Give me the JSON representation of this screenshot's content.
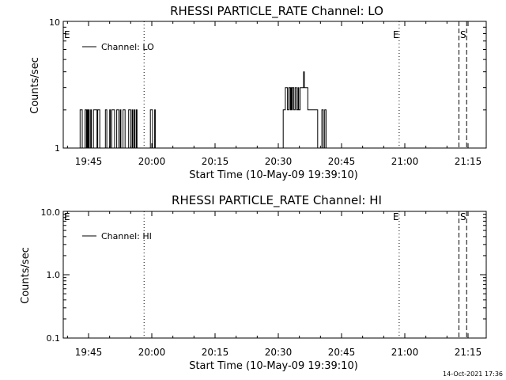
{
  "charts": [
    {
      "title": "RHESSI PARTICLE_RATE Channel: LO",
      "ylabel": "Counts/sec",
      "xlabel": "Start Time (10-May-09 19:39:10)",
      "legend": "Channel: LO",
      "yticks": [
        "1",
        "10"
      ],
      "xticks": [
        "19:45",
        "20:00",
        "20:15",
        "20:30",
        "20:45",
        "21:00",
        "21:15"
      ],
      "markers": [
        {
          "label": "E",
          "pos": "left-edge"
        },
        {
          "label": "E",
          "pos": "dotted"
        },
        {
          "label": "S",
          "pos": "dashed"
        }
      ]
    },
    {
      "title": "RHESSI PARTICLE_RATE Channel: HI",
      "ylabel": "Counts/sec",
      "xlabel": "Start Time (10-May-09 19:39:10)",
      "legend": "Channel: HI",
      "yticks": [
        "0.1",
        "1.0",
        "10.0"
      ],
      "xticks": [
        "19:45",
        "20:00",
        "20:15",
        "20:30",
        "20:45",
        "21:00",
        "21:15"
      ],
      "markers": [
        {
          "label": "E",
          "pos": "left-edge"
        },
        {
          "label": "E",
          "pos": "dotted"
        },
        {
          "label": "S",
          "pos": "dashed"
        }
      ]
    }
  ],
  "footer": {
    "timestamp": "14-Oct-2021 17:36"
  },
  "chart_data": [
    {
      "type": "line",
      "title": "RHESSI PARTICLE_RATE Channel: LO",
      "xlabel": "Start Time (10-May-09 19:39:10)",
      "ylabel": "Counts/sec",
      "yscale": "log",
      "ylim": [
        1,
        10
      ],
      "xlim": [
        "19:39:10",
        "21:19:00"
      ],
      "grid": false,
      "legend_position": "top-left",
      "series": [
        {
          "name": "Channel: LO",
          "x": [
            "19:42:50",
            "19:43:00",
            "19:43:20",
            "19:43:30",
            "19:44:00",
            "19:44:10",
            "19:44:20",
            "19:44:30",
            "19:44:40",
            "19:44:50",
            "19:45:00",
            "19:45:10",
            "19:45:30",
            "19:45:40",
            "19:46:00",
            "19:46:10",
            "19:46:30",
            "19:46:40",
            "19:47:00",
            "19:47:10",
            "19:47:40",
            "19:48:00",
            "19:49:00",
            "19:49:20",
            "19:49:40",
            "19:50:00",
            "19:50:10",
            "19:50:30",
            "19:51:00",
            "19:51:10",
            "19:51:30",
            "19:51:40",
            "19:52:00",
            "19:52:10",
            "19:52:30",
            "19:52:40",
            "19:53:00",
            "19:53:10",
            "19:53:30",
            "19:53:40",
            "19:54:20",
            "19:54:30",
            "19:54:50",
            "19:55:00",
            "19:55:20",
            "19:55:30",
            "19:55:50",
            "19:56:00",
            "19:56:20",
            "19:56:30",
            "19:59:30",
            "19:59:40",
            "20:00:00",
            "20:00:10",
            "20:00:30",
            "20:00:40",
            "20:00:50",
            "20:31:00",
            "20:31:10",
            "20:31:20",
            "20:31:40",
            "20:32:10",
            "20:32:30",
            "20:32:50",
            "20:33:00",
            "20:33:10",
            "20:33:20",
            "20:33:40",
            "20:34:00",
            "20:34:20",
            "20:34:40",
            "20:34:50",
            "20:35:10",
            "20:35:30",
            "20:35:50",
            "20:36:00",
            "20:36:10",
            "20:36:20",
            "20:36:40",
            "20:37:00",
            "20:37:20",
            "20:37:40",
            "20:38:20",
            "20:38:40",
            "20:39:00",
            "20:39:20",
            "20:39:30",
            "20:40:10",
            "20:40:20",
            "20:40:40",
            "20:41:00",
            "20:41:20"
          ],
          "y": [
            1,
            2,
            2,
            1,
            1,
            2,
            2,
            1,
            2,
            1,
            2,
            1,
            2,
            1,
            1,
            2,
            2,
            2,
            1,
            2,
            1,
            1,
            2,
            1,
            1,
            2,
            1,
            2,
            2,
            1,
            1,
            2,
            2,
            1,
            2,
            1,
            1,
            2,
            2,
            1,
            1,
            2,
            2,
            1,
            2,
            1,
            2,
            1,
            2,
            1,
            1,
            2,
            2,
            1,
            1,
            2,
            1,
            1,
            2,
            2,
            3,
            2,
            3,
            2,
            3,
            2,
            3,
            2,
            3,
            2,
            3,
            2,
            3,
            3,
            3,
            4,
            3,
            3,
            3,
            2,
            2,
            2,
            2,
            2,
            2,
            1,
            1,
            1,
            2,
            1,
            2,
            1
          ]
        }
      ]
    },
    {
      "type": "line",
      "title": "RHESSI PARTICLE_RATE Channel: HI",
      "xlabel": "Start Time (10-May-09 19:39:10)",
      "ylabel": "Counts/sec",
      "yscale": "log",
      "ylim": [
        0.1,
        10
      ],
      "xlim": [
        "19:39:10",
        "21:19:00"
      ],
      "grid": false,
      "legend_position": "top-left",
      "series": [
        {
          "name": "Channel: HI",
          "x": [],
          "y": []
        }
      ]
    }
  ]
}
